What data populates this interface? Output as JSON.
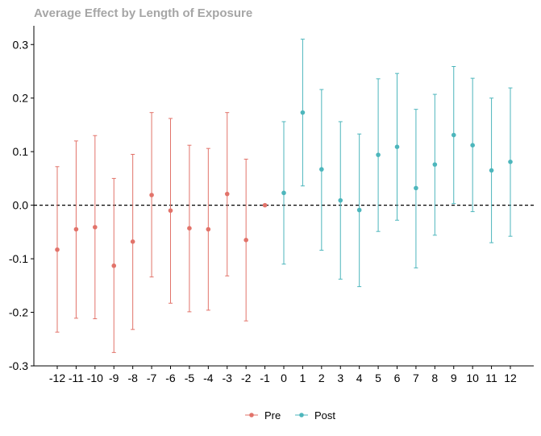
{
  "chart_data": {
    "type": "scatter",
    "title": "Average Effect by Length of Exposure",
    "xlabel": "",
    "ylabel": "",
    "x": [
      -12,
      -11,
      -10,
      -9,
      -8,
      -7,
      -6,
      -5,
      -4,
      -3,
      -2,
      -1,
      0,
      1,
      2,
      3,
      4,
      5,
      6,
      7,
      8,
      9,
      10,
      11,
      12
    ],
    "ylim": [
      -0.3,
      0.335
    ],
    "yticks": [
      -0.3,
      -0.2,
      -0.1,
      0.0,
      0.1,
      0.2,
      0.3
    ],
    "ytick_labels": [
      "-0.3",
      "-0.2",
      "-0.1",
      "0.0",
      "0.1",
      "0.2",
      "0.3"
    ],
    "xtick_labels": [
      "-12",
      "-11",
      "-10",
      "-9",
      "-8",
      "-7",
      "-6",
      "-5",
      "-4",
      "-3",
      "-2",
      "-1",
      "0",
      "1",
      "2",
      "3",
      "4",
      "5",
      "6",
      "7",
      "8",
      "9",
      "10",
      "11",
      "12"
    ],
    "reference_line": {
      "y": 0,
      "style": "dashed",
      "color": "#000000"
    },
    "grid": false,
    "legend_position": "bottom",
    "series": [
      {
        "name": "Pre",
        "color": "#e2736a",
        "points": [
          {
            "x": -12,
            "y": -0.083,
            "lower": -0.237,
            "upper": 0.072
          },
          {
            "x": -11,
            "y": -0.045,
            "lower": -0.211,
            "upper": 0.12
          },
          {
            "x": -10,
            "y": -0.041,
            "lower": -0.212,
            "upper": 0.13
          },
          {
            "x": -9,
            "y": -0.113,
            "lower": -0.275,
            "upper": 0.05
          },
          {
            "x": -8,
            "y": -0.068,
            "lower": -0.232,
            "upper": 0.095
          },
          {
            "x": -7,
            "y": 0.019,
            "lower": -0.134,
            "upper": 0.173
          },
          {
            "x": -6,
            "y": -0.01,
            "lower": -0.183,
            "upper": 0.162
          },
          {
            "x": -5,
            "y": -0.043,
            "lower": -0.199,
            "upper": 0.112
          },
          {
            "x": -4,
            "y": -0.045,
            "lower": -0.196,
            "upper": 0.106
          },
          {
            "x": -3,
            "y": 0.021,
            "lower": -0.132,
            "upper": 0.173
          },
          {
            "x": -2,
            "y": -0.065,
            "lower": -0.216,
            "upper": 0.086
          },
          {
            "x": -1,
            "y": 0.0,
            "lower": 0.0,
            "upper": 0.0
          }
        ]
      },
      {
        "name": "Post",
        "color": "#4db6bc",
        "points": [
          {
            "x": 0,
            "y": 0.023,
            "lower": -0.11,
            "upper": 0.156
          },
          {
            "x": 1,
            "y": 0.173,
            "lower": 0.036,
            "upper": 0.31
          },
          {
            "x": 2,
            "y": 0.067,
            "lower": -0.084,
            "upper": 0.216
          },
          {
            "x": 3,
            "y": 0.009,
            "lower": -0.138,
            "upper": 0.156
          },
          {
            "x": 4,
            "y": -0.009,
            "lower": -0.152,
            "upper": 0.133
          },
          {
            "x": 5,
            "y": 0.094,
            "lower": -0.049,
            "upper": 0.236
          },
          {
            "x": 6,
            "y": 0.109,
            "lower": -0.028,
            "upper": 0.246
          },
          {
            "x": 7,
            "y": 0.032,
            "lower": -0.117,
            "upper": 0.179
          },
          {
            "x": 8,
            "y": 0.076,
            "lower": -0.056,
            "upper": 0.207
          },
          {
            "x": 9,
            "y": 0.131,
            "lower": 0.003,
            "upper": 0.259
          },
          {
            "x": 10,
            "y": 0.112,
            "lower": -0.012,
            "upper": 0.237
          },
          {
            "x": 11,
            "y": 0.065,
            "lower": -0.07,
            "upper": 0.2
          },
          {
            "x": 12,
            "y": 0.081,
            "lower": -0.058,
            "upper": 0.219
          }
        ]
      }
    ]
  }
}
